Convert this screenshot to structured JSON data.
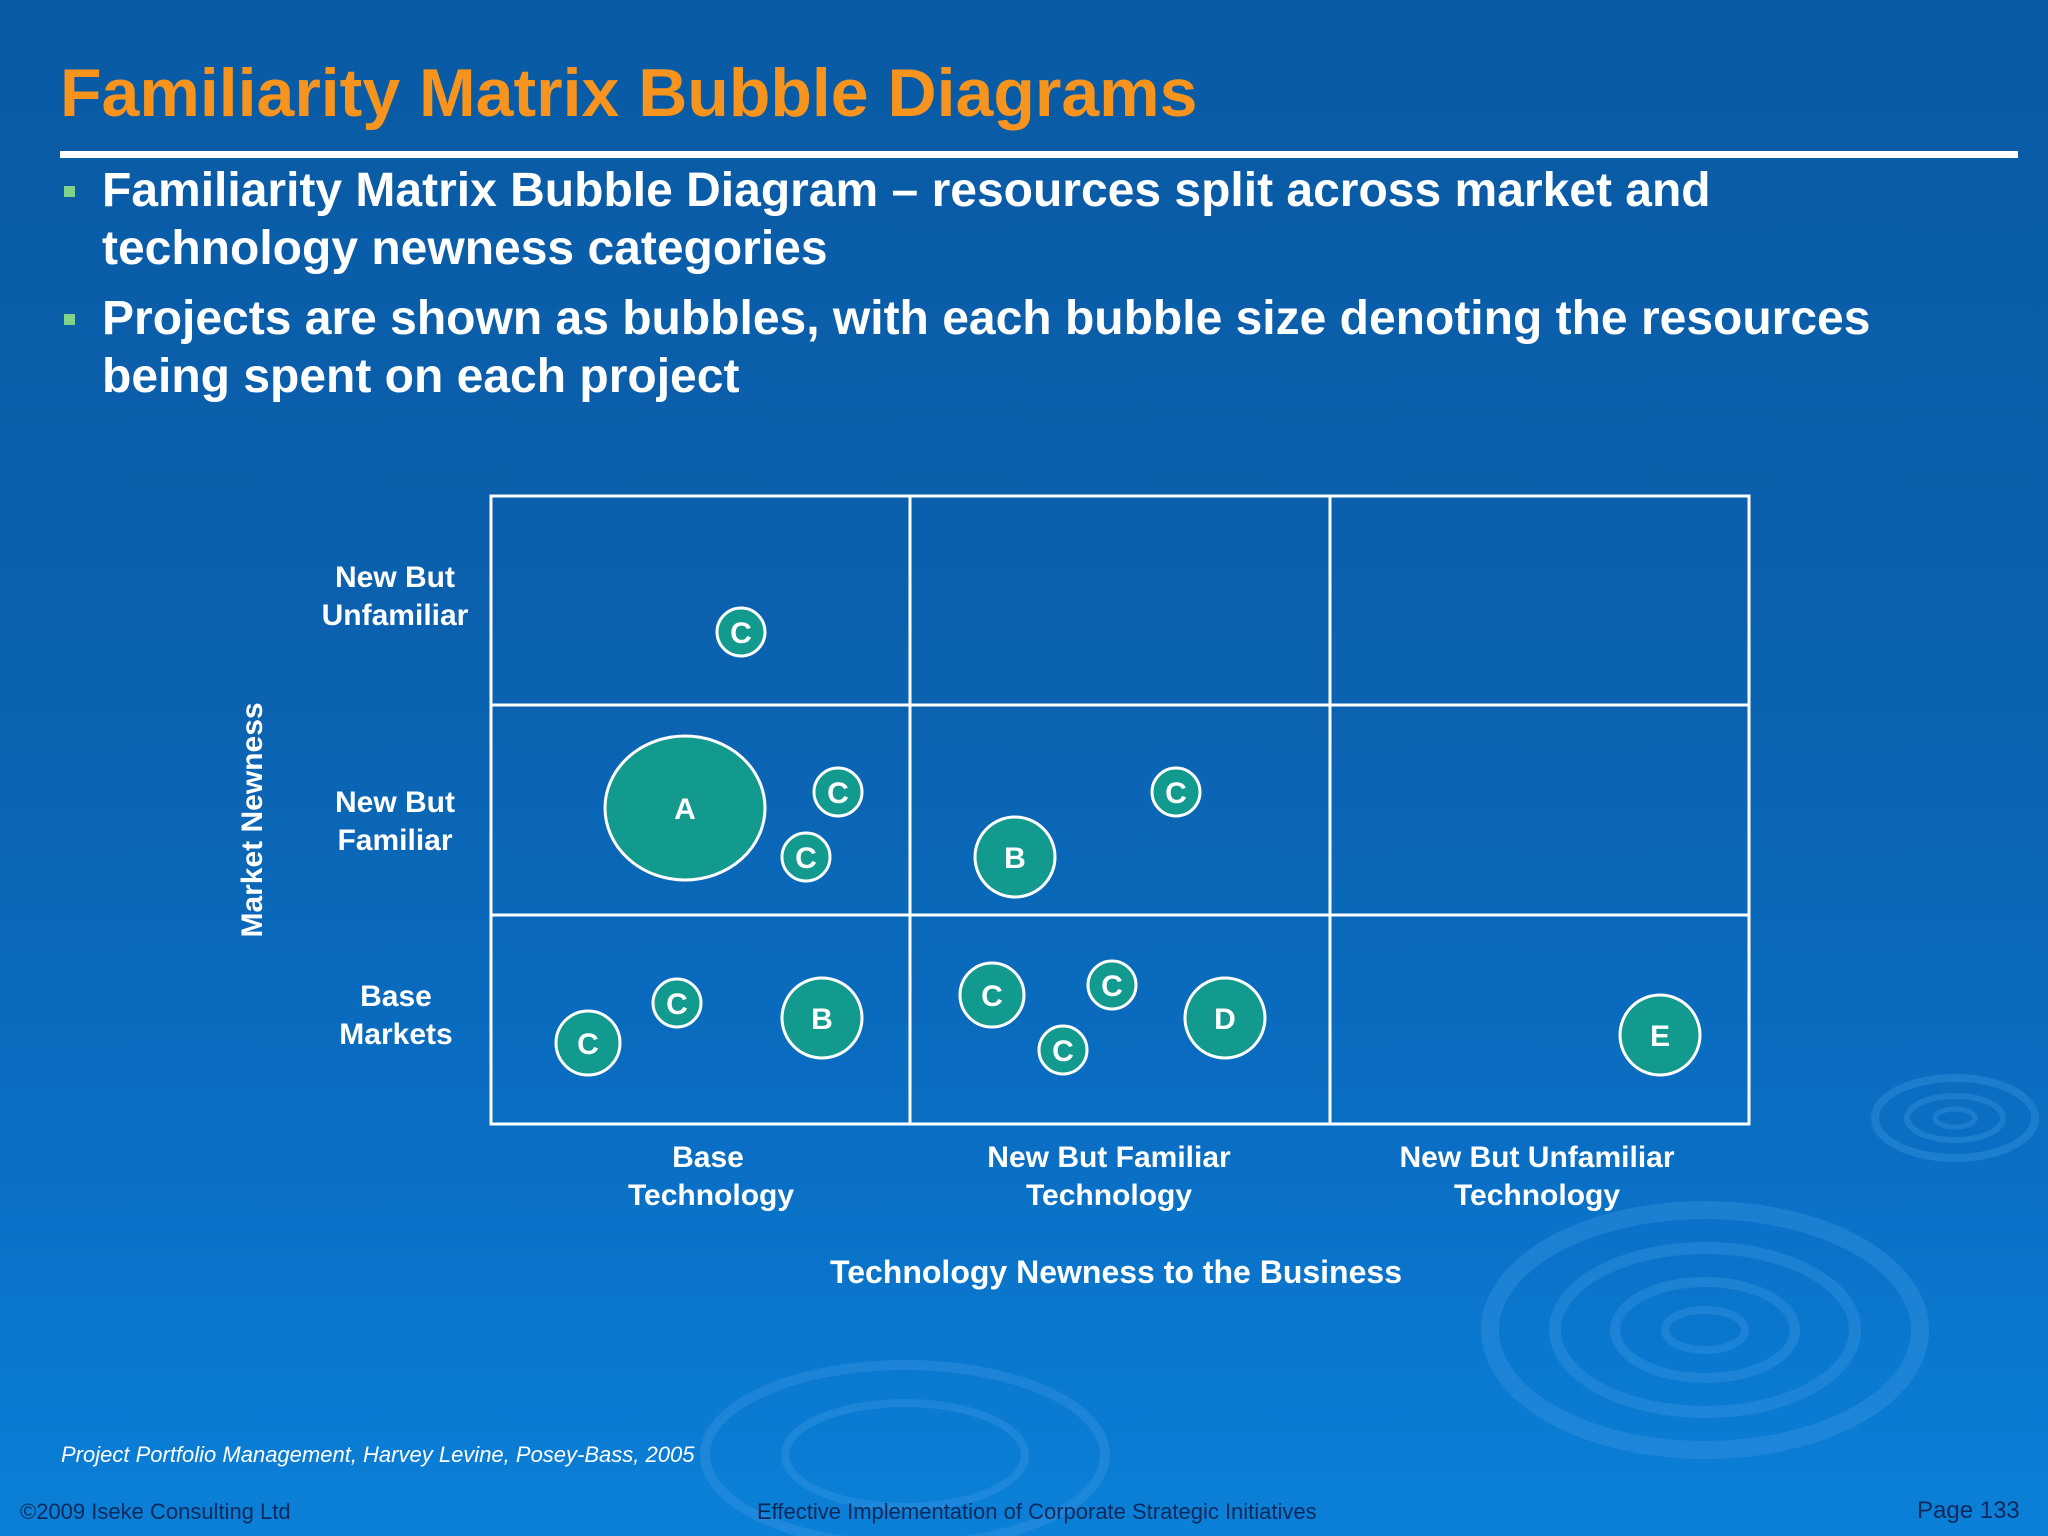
{
  "title": "Familiarity Matrix Bubble Diagrams",
  "bullets": [
    "Familiarity Matrix Bubble Diagram – resources split across market and technology newness categories",
    "Projects are shown as bubbles, with each bubble size denoting the resources being spent on each project"
  ],
  "diagram": {
    "y_axis_title": "Market Newness",
    "x_axis_title": "Technology Newness to the Business",
    "rows": [
      [
        "New But",
        "Unfamiliar"
      ],
      [
        "New But",
        "Familiar"
      ],
      [
        "Base",
        "Markets"
      ]
    ],
    "columns": [
      [
        "Base",
        "Technology"
      ],
      [
        "New But Familiar",
        "Technology"
      ],
      [
        "New But Unfamiliar",
        "Technology"
      ]
    ],
    "bubbles": [
      {
        "label": "C"
      },
      {
        "label": "A"
      },
      {
        "label": "C"
      },
      {
        "label": "C"
      },
      {
        "label": "B"
      },
      {
        "label": "C"
      },
      {
        "label": "C"
      },
      {
        "label": "C"
      },
      {
        "label": "B"
      },
      {
        "label": "C"
      },
      {
        "label": "C"
      },
      {
        "label": "C"
      },
      {
        "label": "D"
      },
      {
        "label": "E"
      }
    ]
  },
  "colors": {
    "title": "#f7941e",
    "background": "#0b62b0",
    "bubble_fill": "#139a8e",
    "footer_text": "#0b2a5a"
  },
  "source": "Project Portfolio Management, Harvey Levine, Posey-Bass, 2005",
  "footer": {
    "copyright": "©2009 Iseke Consulting Ltd",
    "center": "Effective Implementation of Corporate Strategic Initiatives",
    "page": "Page 133"
  }
}
